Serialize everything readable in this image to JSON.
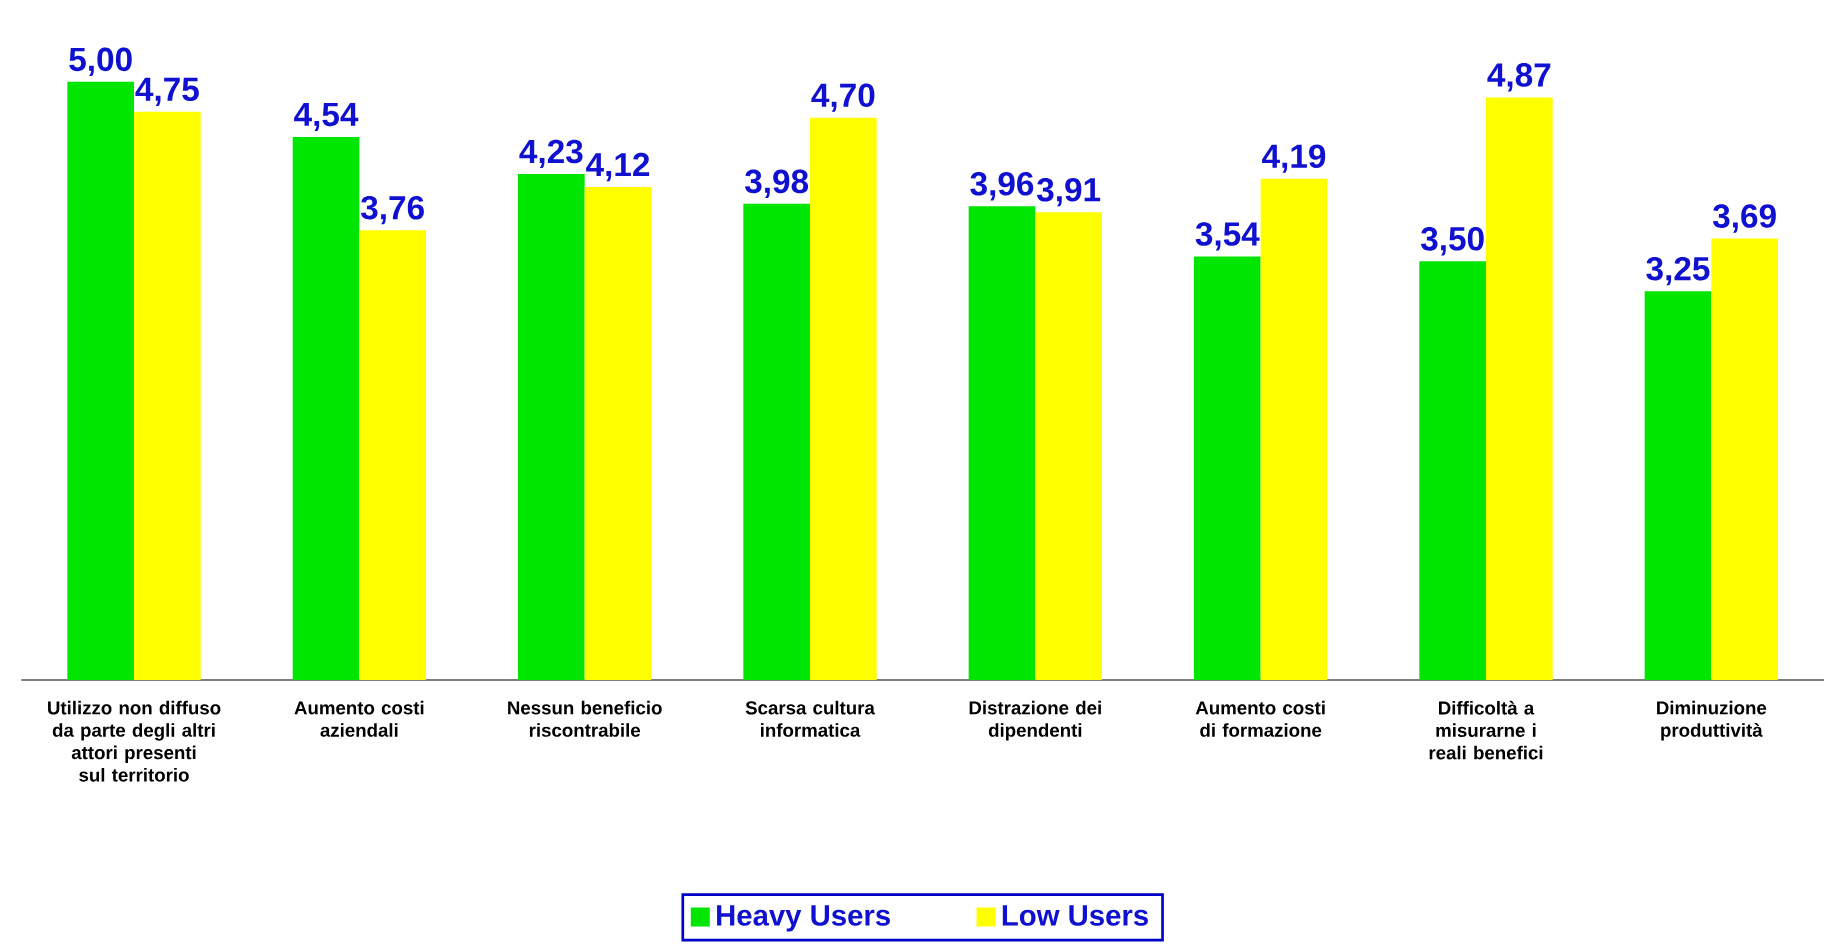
{
  "chart_data": {
    "type": "bar",
    "categories": [
      "Utilizzo non diffuso da parte degli altri attori presenti sul territorio",
      "Aumento costi aziendali",
      "Nessun beneficio riscontrabile",
      "Scarsa cultura informatica",
      "Distrazione dei dipendenti",
      "Aumento costi di formazione",
      "Difficoltà a misurarne i reali benefici",
      "Diminuzione produttività"
    ],
    "series": [
      {
        "name": "Heavy Users",
        "color": "#00e600",
        "values": [
          5.0,
          4.54,
          4.23,
          3.98,
          3.96,
          3.54,
          3.5,
          3.25
        ],
        "value_labels": [
          "5,00",
          "4,54",
          "4,23",
          "3,98",
          "3,96",
          "3,54",
          "3,50",
          "3,25"
        ]
      },
      {
        "name": "Low Users",
        "color": "#ffff00",
        "values": [
          4.75,
          3.76,
          4.12,
          4.7,
          3.91,
          4.19,
          4.87,
          3.69
        ],
        "value_labels": [
          "4,75",
          "3,76",
          "4,12",
          "4,70",
          "3,91",
          "4,19",
          "4,87",
          "3,69"
        ]
      }
    ],
    "legend": "bottom"
  }
}
